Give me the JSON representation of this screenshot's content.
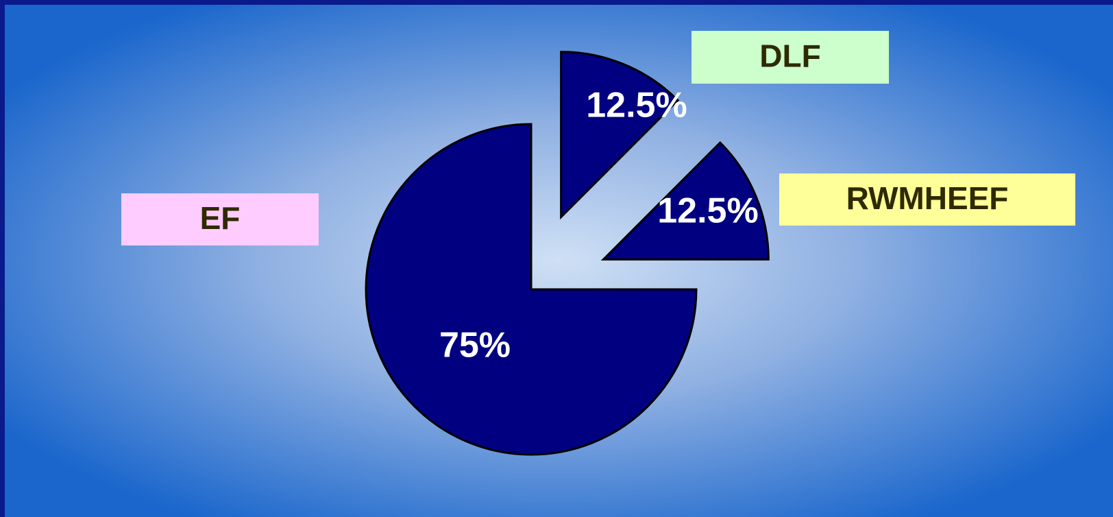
{
  "chart_data": {
    "type": "pie",
    "categories": [
      "DLF",
      "RWMHEEF",
      "EF"
    ],
    "values": [
      12.5,
      12.5,
      75
    ],
    "value_labels": [
      "12.5%",
      "12.5%",
      "75%"
    ],
    "color": "#000080",
    "label_colors": [
      "#ccffcc",
      "#ffff99",
      "#ffccff"
    ]
  }
}
